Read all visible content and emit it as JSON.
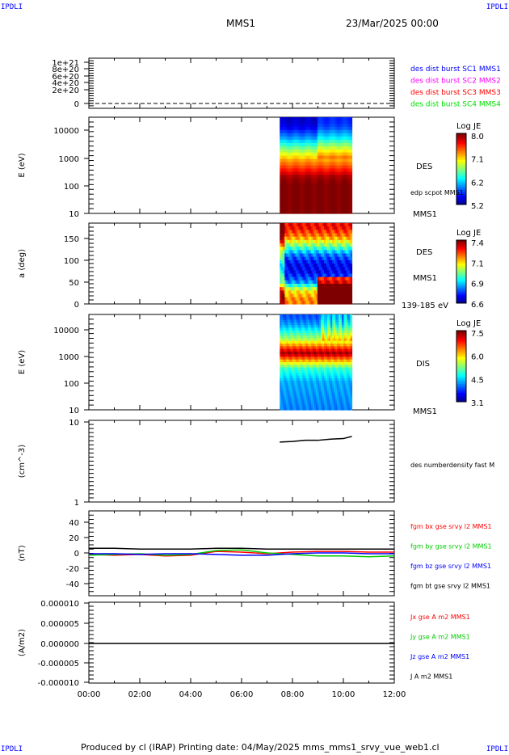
{
  "header": {
    "corner_left_top": "IPDLI",
    "corner_right_top": "IPDLI",
    "corner_left_bottom": "IPDLI",
    "corner_right_bottom": "IPDLI",
    "spacecraft": "MMS1",
    "date": "23/Mar/2025 00:00"
  },
  "footer": "Produced by cl (IRAP)   Printing date: 04/May/2025   mms_mms1_srvy_vue_web1.cl",
  "chart_data": [
    {
      "type": "line",
      "ylabel": "",
      "yticks": [
        "1e+21",
        "8e+20",
        "6e+20",
        "4e+20",
        "2e+20",
        "0"
      ],
      "ylim": [
        0,
        1e+21
      ],
      "legend": [
        {
          "name": "des dist burst SC1 MMS1",
          "color": "#0000ff"
        },
        {
          "name": "des dist burst SC2 MMS2",
          "color": "#ff00ff"
        },
        {
          "name": "des dist burst SC3 MMS3",
          "color": "#ff0000"
        },
        {
          "name": "des dist burst SC4 MMS4",
          "color": "#00dd00"
        }
      ],
      "series": [
        {
          "values": [
            0,
            0
          ],
          "x": [
            "00:00",
            "12:00"
          ],
          "style": "dashed"
        }
      ]
    },
    {
      "type": "heatmap",
      "ylabel": "E (eV)",
      "yscale": "log",
      "yticks": [
        "10000",
        "1000",
        "100",
        "10"
      ],
      "labels": [
        "DES",
        "edp scpot MMS1",
        "MMS1"
      ],
      "colorbar": {
        "title": "Log JE",
        "ticks": [
          "8.0",
          "7.1",
          "6.2",
          "5.2"
        ],
        "range": [
          5.2,
          8.0
        ]
      },
      "t_range": [
        "07:30",
        "10:20"
      ],
      "profile": {
        "energy_eV": [
          20,
          50,
          100,
          300,
          1000,
          3000,
          10000,
          20000
        ],
        "logJE": [
          8.0,
          7.9,
          7.6,
          7.2,
          6.6,
          6.0,
          5.5,
          5.4
        ]
      }
    },
    {
      "type": "heatmap",
      "ylabel": "a (deg)",
      "yticks": [
        "150",
        "100",
        "50",
        "0"
      ],
      "ylim": [
        0,
        180
      ],
      "labels": [
        "DES",
        "MMS1",
        "139-185 eV"
      ],
      "colorbar": {
        "title": "Log JE",
        "ticks": [
          "7.4",
          "7.1",
          "6.9",
          "6.6"
        ],
        "range": [
          6.6,
          7.4
        ]
      },
      "t_range": [
        "07:30",
        "10:20"
      ],
      "profile": {
        "pitch_deg": [
          10,
          30,
          50,
          70,
          90,
          110,
          130,
          150,
          170
        ],
        "logJE": [
          7.2,
          7.1,
          6.8,
          6.7,
          6.7,
          6.8,
          7.0,
          7.2,
          7.3
        ]
      }
    },
    {
      "type": "heatmap",
      "ylabel": "E (eV)",
      "yscale": "log",
      "yticks": [
        "10000",
        "1000",
        "100",
        "10"
      ],
      "labels": [
        "DIS",
        "MMS1"
      ],
      "colorbar": {
        "title": "Log JE",
        "ticks": [
          "7.5",
          "6.0",
          "4.5",
          "3.1"
        ],
        "range": [
          3.1,
          7.5
        ]
      },
      "t_range": [
        "07:30",
        "10:20"
      ],
      "profile": {
        "energy_eV": [
          10,
          30,
          100,
          300,
          700,
          1000,
          1500,
          3000,
          10000,
          20000
        ],
        "logJE": [
          4.2,
          4.3,
          4.4,
          5.0,
          6.6,
          7.4,
          6.8,
          5.6,
          4.4,
          4.0
        ]
      }
    },
    {
      "type": "line",
      "ylabel": "(cm^-3)",
      "yscale": "log",
      "yticks": [
        "10",
        "1"
      ],
      "ylim": [
        1,
        10
      ],
      "legend": [
        {
          "name": "des numberdensity fast M",
          "color": "#000000"
        }
      ],
      "series": [
        {
          "x": [
            "07:30",
            "08:00",
            "08:30",
            "09:00",
            "09:30",
            "10:00",
            "10:20"
          ],
          "values": [
            5.6,
            5.7,
            5.9,
            5.9,
            6.1,
            6.2,
            6.6
          ],
          "color": "#000000"
        }
      ]
    },
    {
      "type": "line",
      "ylabel": "(nT)",
      "yticks": [
        "40",
        "20",
        "0",
        "-20",
        "-40"
      ],
      "ylim": [
        -55,
        55
      ],
      "legend": [
        {
          "name": "fgm bx gse srvy l2 MMS1",
          "color": "#ff0000"
        },
        {
          "name": "fgm by gse srvy l2 MMS1",
          "color": "#00cc00"
        },
        {
          "name": "fgm bz gse srvy l2 MMS1",
          "color": "#0000ff"
        },
        {
          "name": "fgm bt gse srvy l2 MMS1",
          "color": "#000000"
        }
      ],
      "x": [
        "00:00",
        "01:00",
        "02:00",
        "03:00",
        "04:00",
        "05:00",
        "06:00",
        "07:00",
        "08:00",
        "09:00",
        "10:00",
        "11:00",
        "12:00"
      ],
      "series": [
        {
          "name": "bx",
          "color": "#ff0000",
          "values": [
            -2,
            -3,
            -2,
            -4,
            -3,
            2,
            1,
            -1,
            1,
            2,
            2,
            1,
            1
          ]
        },
        {
          "name": "by",
          "color": "#00cc00",
          "values": [
            -3,
            -2,
            -1,
            -3,
            -2,
            3,
            4,
            0,
            -2,
            -4,
            -4,
            -5,
            -4
          ]
        },
        {
          "name": "bz",
          "color": "#0000ff",
          "values": [
            -1,
            -1,
            -2,
            -1,
            -1,
            -2,
            -3,
            -3,
            -1,
            0,
            0,
            -1,
            -1
          ]
        },
        {
          "name": "bt",
          "color": "#000000",
          "values": [
            6,
            6,
            5,
            5,
            5,
            6,
            6,
            5,
            5,
            5,
            5,
            5,
            5
          ]
        }
      ]
    },
    {
      "type": "line",
      "ylabel": "(A/m2)",
      "yticks": [
        "0.000010",
        "0.000005",
        "0.000000",
        "-0.000005",
        "-0.000010"
      ],
      "ylim": [
        -1e-05,
        1e-05
      ],
      "legend": [
        {
          "name": "Jx gse A m2 MMS1",
          "color": "#ff0000"
        },
        {
          "name": "Jy gse A m2 MMS1",
          "color": "#00cc00"
        },
        {
          "name": "Jz gse A m2 MMS1",
          "color": "#0000ff"
        },
        {
          "name": "J A m2 MMS1",
          "color": "#000000"
        }
      ],
      "series": [
        {
          "name": "J",
          "color": "#000000",
          "x": [
            "00:00",
            "12:00"
          ],
          "values": [
            0,
            0
          ]
        }
      ]
    }
  ],
  "xaxis": {
    "ticks": [
      "00:00",
      "02:00",
      "04:00",
      "06:00",
      "08:00",
      "10:00",
      "12:00"
    ]
  }
}
